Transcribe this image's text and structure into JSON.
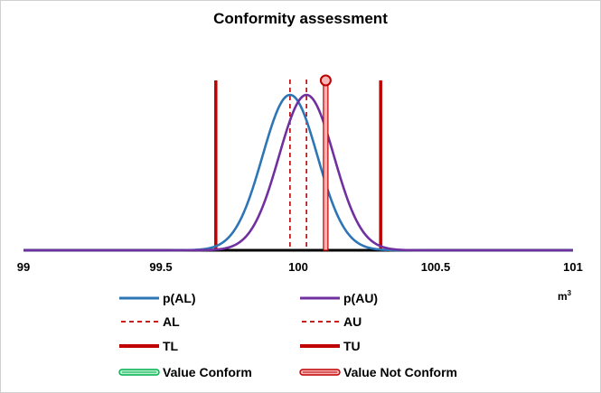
{
  "chart_data": {
    "type": "line",
    "title": "Conformity assessment",
    "xlabel": "",
    "unit": {
      "base": "m",
      "exp": "3"
    },
    "xlim": [
      99,
      101
    ],
    "x_ticks": [
      "99",
      "99.5",
      "100",
      "100.5",
      "101"
    ],
    "x_tick_values": [
      99,
      99.5,
      100,
      100.5,
      101
    ],
    "series": [
      {
        "name": "p(AL)",
        "kind": "normal",
        "mean": 99.97,
        "sd": 0.1,
        "color": "#2e75b6",
        "style": "solid"
      },
      {
        "name": "p(AU)",
        "kind": "normal",
        "mean": 100.03,
        "sd": 0.1,
        "color": "#7030a0",
        "style": "solid"
      },
      {
        "name": "AL",
        "kind": "vline",
        "x": 99.97,
        "color": "#c00000",
        "style": "dashed"
      },
      {
        "name": "AU",
        "kind": "vline",
        "x": 100.03,
        "color": "#c00000",
        "style": "dashed"
      },
      {
        "name": "TL",
        "kind": "vline",
        "x": 99.7,
        "color": "#c00000",
        "style": "thick"
      },
      {
        "name": "TU",
        "kind": "vline",
        "x": 100.3,
        "color": "#c00000",
        "style": "thick"
      },
      {
        "name": "Value Conform",
        "kind": "marker",
        "x": null,
        "color": "#00b050",
        "style": "double"
      },
      {
        "name": "Value Not Conform",
        "kind": "marker",
        "x": 100.1,
        "color": "#c00000",
        "style": "double"
      }
    ],
    "legend_position": "bottom",
    "grid": false
  }
}
